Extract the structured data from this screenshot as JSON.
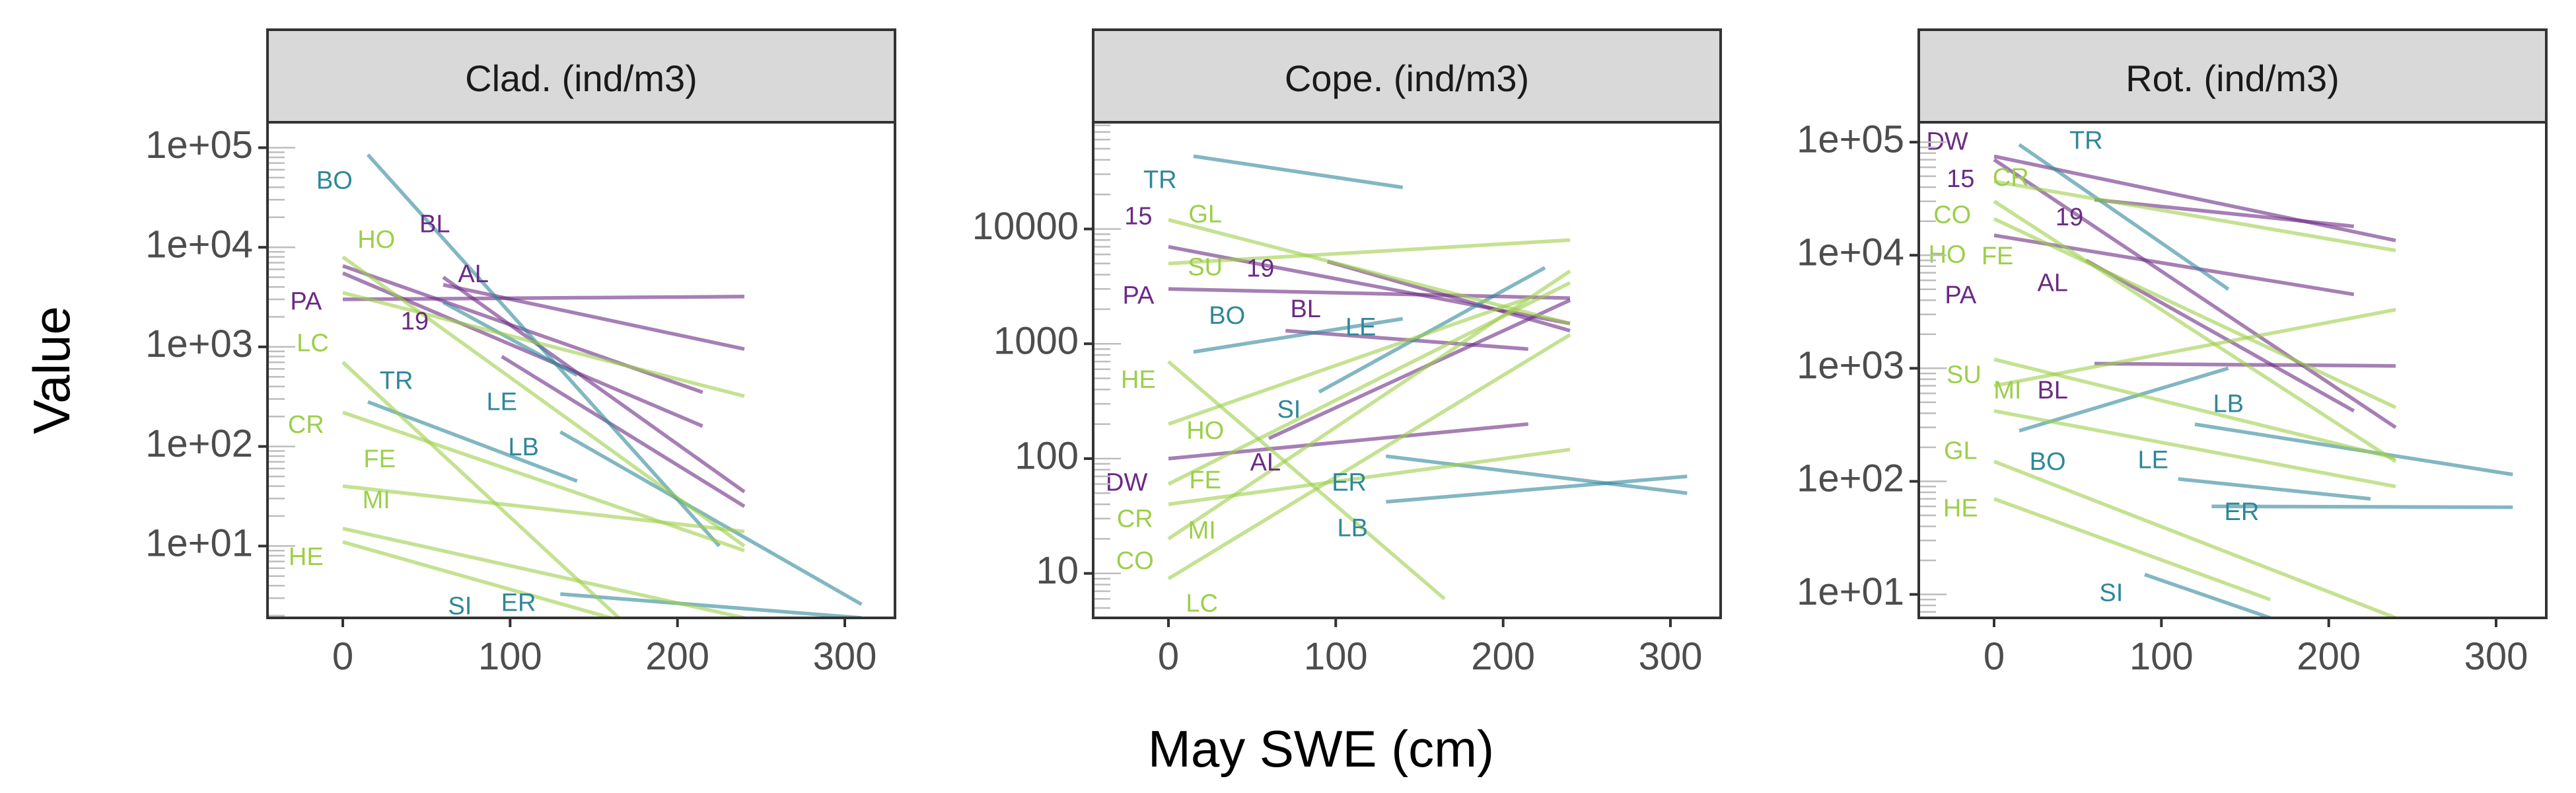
{
  "colors": {
    "purple": "#6b2a84",
    "teal": "#2e8799",
    "green": "#9ccf4a",
    "frame": "#333333",
    "strip": "#d9d9d9",
    "tick_text": "#4d4d4d"
  },
  "figure": {
    "xlabel": "May SWE (cm)",
    "ylabel": "Value"
  },
  "chart_data": [
    {
      "type": "line",
      "title": "Clad. (ind/m3)",
      "scale": "log",
      "xlim": [
        -45,
        330
      ],
      "ylim": [
        1.9,
        180000
      ],
      "x_ticks": [
        0,
        100,
        200,
        300
      ],
      "x_tick_labels": [
        "0",
        "100",
        "200",
        "300"
      ],
      "y_ticks": [
        10,
        100,
        1000,
        10000,
        100000
      ],
      "y_tick_labels": [
        "1e+01",
        "1e+02",
        "1e+03",
        "1e+04",
        "1e+05"
      ],
      "series": [
        {
          "color": "purple",
          "x": [
            0,
            215
          ],
          "y": [
            5500,
            160
          ]
        },
        {
          "color": "purple",
          "x": [
            0,
            240
          ],
          "y": [
            3000,
            3200
          ]
        },
        {
          "color": "purple",
          "x": [
            0,
            215
          ],
          "y": [
            6500,
            350
          ]
        },
        {
          "color": "purple",
          "x": [
            60,
            240
          ],
          "y": [
            4200,
            950
          ]
        },
        {
          "color": "purple",
          "x": [
            60,
            240
          ],
          "y": [
            5000,
            35
          ]
        },
        {
          "color": "purple",
          "x": [
            95,
            240
          ],
          "y": [
            800,
            25
          ]
        },
        {
          "color": "teal",
          "x": [
            15,
            225
          ],
          "y": [
            85000,
            10
          ]
        },
        {
          "color": "teal",
          "x": [
            15,
            140
          ],
          "y": [
            280,
            45
          ]
        },
        {
          "color": "teal",
          "x": [
            130,
            310
          ],
          "y": [
            140,
            2.6
          ]
        },
        {
          "color": "teal",
          "x": [
            60,
            140
          ],
          "y": [
            2800,
            520
          ]
        },
        {
          "color": "teal",
          "x": [
            130,
            310
          ],
          "y": [
            3.3,
            1.9
          ]
        },
        {
          "color": "green",
          "x": [
            0,
            240
          ],
          "y": [
            8000,
            10
          ]
        },
        {
          "color": "green",
          "x": [
            0,
            240
          ],
          "y": [
            3500,
            320
          ]
        },
        {
          "color": "green",
          "x": [
            0,
            165
          ],
          "y": [
            700,
            1.9
          ]
        },
        {
          "color": "green",
          "x": [
            0,
            240
          ],
          "y": [
            220,
            9
          ]
        },
        {
          "color": "green",
          "x": [
            0,
            240
          ],
          "y": [
            40,
            14
          ]
        },
        {
          "color": "green",
          "x": [
            0,
            240
          ],
          "y": [
            15,
            1.9
          ]
        },
        {
          "color": "green",
          "x": [
            0,
            160
          ],
          "y": [
            11,
            1.9
          ]
        }
      ],
      "labels": [
        {
          "text": "BO",
          "x": -5,
          "y": 45000,
          "color": "teal"
        },
        {
          "text": "BL",
          "x": 55,
          "y": 16500,
          "color": "purple"
        },
        {
          "text": "HO",
          "x": 20,
          "y": 11500,
          "color": "green"
        },
        {
          "text": "AL",
          "x": 78,
          "y": 5200,
          "color": "purple"
        },
        {
          "text": "PA",
          "x": -22,
          "y": 2750,
          "color": "purple"
        },
        {
          "text": "19",
          "x": 43,
          "y": 1750,
          "color": "purple"
        },
        {
          "text": "LC",
          "x": -18,
          "y": 1050,
          "color": "green"
        },
        {
          "text": "TR",
          "x": 32,
          "y": 440,
          "color": "teal"
        },
        {
          "text": "LE",
          "x": 95,
          "y": 270,
          "color": "teal"
        },
        {
          "text": "CR",
          "x": -22,
          "y": 160,
          "color": "green"
        },
        {
          "text": "LB",
          "x": 108,
          "y": 95,
          "color": "teal"
        },
        {
          "text": "FE",
          "x": 22,
          "y": 72,
          "color": "green"
        },
        {
          "text": "MI",
          "x": 20,
          "y": 28,
          "color": "green"
        },
        {
          "text": "HE",
          "x": -22,
          "y": 7.5,
          "color": "green"
        },
        {
          "text": "SI",
          "x": 70,
          "y": 2.4,
          "color": "teal"
        },
        {
          "text": "ER",
          "x": 105,
          "y": 2.6,
          "color": "teal"
        }
      ]
    },
    {
      "type": "line",
      "title": "Cope. (ind/m3)",
      "scale": "log",
      "xlim": [
        -45,
        330
      ],
      "ylim": [
        4.1,
        85000
      ],
      "x_ticks": [
        0,
        100,
        200,
        300
      ],
      "x_tick_labels": [
        "0",
        "100",
        "200",
        "300"
      ],
      "y_ticks": [
        10,
        100,
        1000,
        10000
      ],
      "y_tick_labels": [
        "10",
        "100",
        "1000",
        "10000"
      ],
      "series": [
        {
          "color": "purple",
          "x": [
            0,
            240
          ],
          "y": [
            7000,
            1500
          ]
        },
        {
          "color": "purple",
          "x": [
            0,
            240
          ],
          "y": [
            3000,
            2500
          ]
        },
        {
          "color": "purple",
          "x": [
            0,
            215
          ],
          "y": [
            100,
            200
          ]
        },
        {
          "color": "purple",
          "x": [
            60,
            240
          ],
          "y": [
            150,
            2400
          ]
        },
        {
          "color": "purple",
          "x": [
            95,
            240
          ],
          "y": [
            5200,
            1300
          ]
        },
        {
          "color": "purple",
          "x": [
            70,
            215
          ],
          "y": [
            1300,
            900
          ]
        },
        {
          "color": "teal",
          "x": [
            15,
            140
          ],
          "y": [
            43000,
            23000
          ]
        },
        {
          "color": "teal",
          "x": [
            15,
            140
          ],
          "y": [
            850,
            1650
          ]
        },
        {
          "color": "teal",
          "x": [
            90,
            225
          ],
          "y": [
            380,
            4600
          ]
        },
        {
          "color": "teal",
          "x": [
            130,
            310
          ],
          "y": [
            105,
            50
          ]
        },
        {
          "color": "teal",
          "x": [
            130,
            310
          ],
          "y": [
            42,
            70
          ]
        },
        {
          "color": "green",
          "x": [
            0,
            240
          ],
          "y": [
            12000,
            1500
          ]
        },
        {
          "color": "green",
          "x": [
            0,
            240
          ],
          "y": [
            5000,
            8000
          ]
        },
        {
          "color": "green",
          "x": [
            0,
            165
          ],
          "y": [
            700,
            6
          ]
        },
        {
          "color": "green",
          "x": [
            0,
            240
          ],
          "y": [
            20,
            4300
          ]
        },
        {
          "color": "green",
          "x": [
            0,
            240
          ],
          "y": [
            9,
            1200
          ]
        },
        {
          "color": "green",
          "x": [
            0,
            240
          ],
          "y": [
            40,
            120
          ]
        },
        {
          "color": "green",
          "x": [
            0,
            240
          ],
          "y": [
            60,
            3400
          ]
        },
        {
          "color": "green",
          "x": [
            0,
            215
          ],
          "y": [
            200,
            2500
          ]
        }
      ],
      "labels": [
        {
          "text": "TR",
          "x": -5,
          "y": 26000,
          "color": "teal"
        },
        {
          "text": "15",
          "x": -18,
          "y": 12500,
          "color": "purple"
        },
        {
          "text": "GL",
          "x": 22,
          "y": 13000,
          "color": "green"
        },
        {
          "text": "SU",
          "x": 22,
          "y": 4500,
          "color": "green"
        },
        {
          "text": "19",
          "x": 55,
          "y": 4400,
          "color": "purple"
        },
        {
          "text": "PA",
          "x": -18,
          "y": 2550,
          "color": "purple"
        },
        {
          "text": "BL",
          "x": 82,
          "y": 1950,
          "color": "purple"
        },
        {
          "text": "BO",
          "x": 35,
          "y": 1700,
          "color": "teal"
        },
        {
          "text": "LE",
          "x": 115,
          "y": 1350,
          "color": "teal"
        },
        {
          "text": "HE",
          "x": -18,
          "y": 470,
          "color": "green"
        },
        {
          "text": "SI",
          "x": 72,
          "y": 260,
          "color": "teal"
        },
        {
          "text": "HO",
          "x": 22,
          "y": 170,
          "color": "green"
        },
        {
          "text": "AL",
          "x": 58,
          "y": 90,
          "color": "purple"
        },
        {
          "text": "DW",
          "x": -25,
          "y": 60,
          "color": "purple"
        },
        {
          "text": "FE",
          "x": 22,
          "y": 63,
          "color": "green"
        },
        {
          "text": "ER",
          "x": 108,
          "y": 60,
          "color": "teal"
        },
        {
          "text": "CR",
          "x": -20,
          "y": 29,
          "color": "green"
        },
        {
          "text": "LB",
          "x": 110,
          "y": 24,
          "color": "teal"
        },
        {
          "text": "MI",
          "x": 20,
          "y": 23,
          "color": "green"
        },
        {
          "text": "CO",
          "x": -20,
          "y": 12.5,
          "color": "green"
        },
        {
          "text": "LC",
          "x": 20,
          "y": 5.3,
          "color": "green"
        }
      ]
    },
    {
      "type": "line",
      "title": "Rot. (ind/m3)",
      "scale": "log",
      "xlim": [
        -45,
        330
      ],
      "ylim": [
        6.2,
        150000
      ],
      "x_ticks": [
        0,
        100,
        200,
        300
      ],
      "x_tick_labels": [
        "0",
        "100",
        "200",
        "300"
      ],
      "y_ticks": [
        10,
        100,
        1000,
        10000,
        100000
      ],
      "y_tick_labels": [
        "1e+01",
        "1e+02",
        "1e+03",
        "1e+04",
        "1e+05"
      ],
      "series": [
        {
          "color": "purple",
          "x": [
            0,
            240
          ],
          "y": [
            75000,
            13500
          ]
        },
        {
          "color": "purple",
          "x": [
            0,
            215
          ],
          "y": [
            15000,
            4500
          ]
        },
        {
          "color": "purple",
          "x": [
            0,
            240
          ],
          "y": [
            70000,
            300
          ]
        },
        {
          "color": "purple",
          "x": [
            60,
            215
          ],
          "y": [
            31000,
            18000
          ]
        },
        {
          "color": "purple",
          "x": [
            60,
            240
          ],
          "y": [
            1100,
            1050
          ]
        },
        {
          "color": "purple",
          "x": [
            55,
            215
          ],
          "y": [
            9000,
            420
          ]
        },
        {
          "color": "teal",
          "x": [
            15,
            140
          ],
          "y": [
            95000,
            5000
          ]
        },
        {
          "color": "teal",
          "x": [
            15,
            140
          ],
          "y": [
            280,
            1000
          ]
        },
        {
          "color": "teal",
          "x": [
            120,
            310
          ],
          "y": [
            320,
            115
          ]
        },
        {
          "color": "teal",
          "x": [
            110,
            225
          ],
          "y": [
            105,
            70
          ]
        },
        {
          "color": "teal",
          "x": [
            130,
            310
          ],
          "y": [
            60,
            59
          ]
        },
        {
          "color": "teal",
          "x": [
            90,
            165
          ],
          "y": [
            15,
            6.2
          ]
        },
        {
          "color": "green",
          "x": [
            0,
            240
          ],
          "y": [
            45000,
            11000
          ]
        },
        {
          "color": "green",
          "x": [
            0,
            240
          ],
          "y": [
            30000,
            150
          ]
        },
        {
          "color": "green",
          "x": [
            0,
            240
          ],
          "y": [
            21000,
            450
          ]
        },
        {
          "color": "green",
          "x": [
            0,
            240
          ],
          "y": [
            700,
            3300
          ]
        },
        {
          "color": "green",
          "x": [
            0,
            240
          ],
          "y": [
            420,
            90
          ]
        },
        {
          "color": "green",
          "x": [
            0,
            165
          ],
          "y": [
            70,
            9
          ]
        },
        {
          "color": "green",
          "x": [
            0,
            240
          ],
          "y": [
            150,
            6.2
          ]
        },
        {
          "color": "green",
          "x": [
            0,
            240
          ],
          "y": [
            1200,
            160
          ]
        }
      ],
      "labels": [
        {
          "text": "DW",
          "x": -28,
          "y": 98000,
          "color": "purple"
        },
        {
          "text": "TR",
          "x": 55,
          "y": 100000,
          "color": "teal"
        },
        {
          "text": "15",
          "x": -20,
          "y": 46000,
          "color": "purple"
        },
        {
          "text": "CR",
          "x": 10,
          "y": 47000,
          "color": "green"
        },
        {
          "text": "CO",
          "x": -25,
          "y": 22000,
          "color": "green"
        },
        {
          "text": "19",
          "x": 45,
          "y": 21000,
          "color": "purple"
        },
        {
          "text": "HO",
          "x": -28,
          "y": 9800,
          "color": "green"
        },
        {
          "text": "FE",
          "x": 2,
          "y": 9500,
          "color": "green"
        },
        {
          "text": "AL",
          "x": 35,
          "y": 5500,
          "color": "purple"
        },
        {
          "text": "PA",
          "x": -20,
          "y": 4300,
          "color": "purple"
        },
        {
          "text": "SU",
          "x": -18,
          "y": 850,
          "color": "green"
        },
        {
          "text": "MI",
          "x": 8,
          "y": 620,
          "color": "green"
        },
        {
          "text": "BL",
          "x": 35,
          "y": 620,
          "color": "purple"
        },
        {
          "text": "LB",
          "x": 140,
          "y": 470,
          "color": "teal"
        },
        {
          "text": "GL",
          "x": -20,
          "y": 180,
          "color": "green"
        },
        {
          "text": "BO",
          "x": 32,
          "y": 145,
          "color": "teal"
        },
        {
          "text": "LE",
          "x": 95,
          "y": 150,
          "color": "teal"
        },
        {
          "text": "HE",
          "x": -20,
          "y": 56,
          "color": "green"
        },
        {
          "text": "ER",
          "x": 148,
          "y": 52,
          "color": "teal"
        },
        {
          "text": "SI",
          "x": 70,
          "y": 10,
          "color": "teal"
        }
      ]
    }
  ]
}
